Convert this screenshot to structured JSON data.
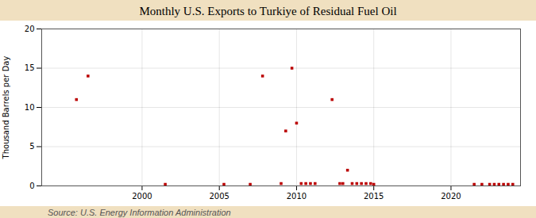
{
  "chart_data": {
    "type": "scatter",
    "title": "Monthly U.S. Exports to Turkiye of Residual Fuel Oil",
    "ylabel": "Thousand Barrels per Day",
    "annotations": [
      "Source: U.S. Energy Information Administration"
    ],
    "x": [
      1995.75,
      1996.5,
      2001.5,
      2005.3,
      2007.0,
      2007.8,
      2009.0,
      2009.3,
      2009.7,
      2010.0,
      2010.3,
      2010.6,
      2010.9,
      2011.2,
      2012.3,
      2012.8,
      2013.0,
      2013.3,
      2013.6,
      2013.9,
      2014.2,
      2014.5,
      2014.8,
      2015.0,
      2021.5,
      2022.0,
      2022.5,
      2022.8,
      2023.1,
      2023.4,
      2023.7,
      2024.0
    ],
    "values": [
      11,
      14,
      0.2,
      0.2,
      0.2,
      14,
      0.3,
      7,
      15,
      8,
      0.3,
      0.3,
      0.3,
      0.3,
      11,
      0.3,
      0.3,
      2,
      0.3,
      0.3,
      0.3,
      0.3,
      0.3,
      0.2,
      0.2,
      0.2,
      0.2,
      0.2,
      0.2,
      0.2,
      0.2,
      0.2
    ],
    "color": "#bb0000",
    "marker": "square",
    "xlim": [
      1993.5,
      2024.5
    ],
    "xticks": [
      2000,
      2005,
      2010,
      2015,
      2020
    ],
    "ylim": [
      0,
      20
    ],
    "yticks": [
      0,
      5,
      10,
      15,
      20
    ],
    "grid": true
  }
}
